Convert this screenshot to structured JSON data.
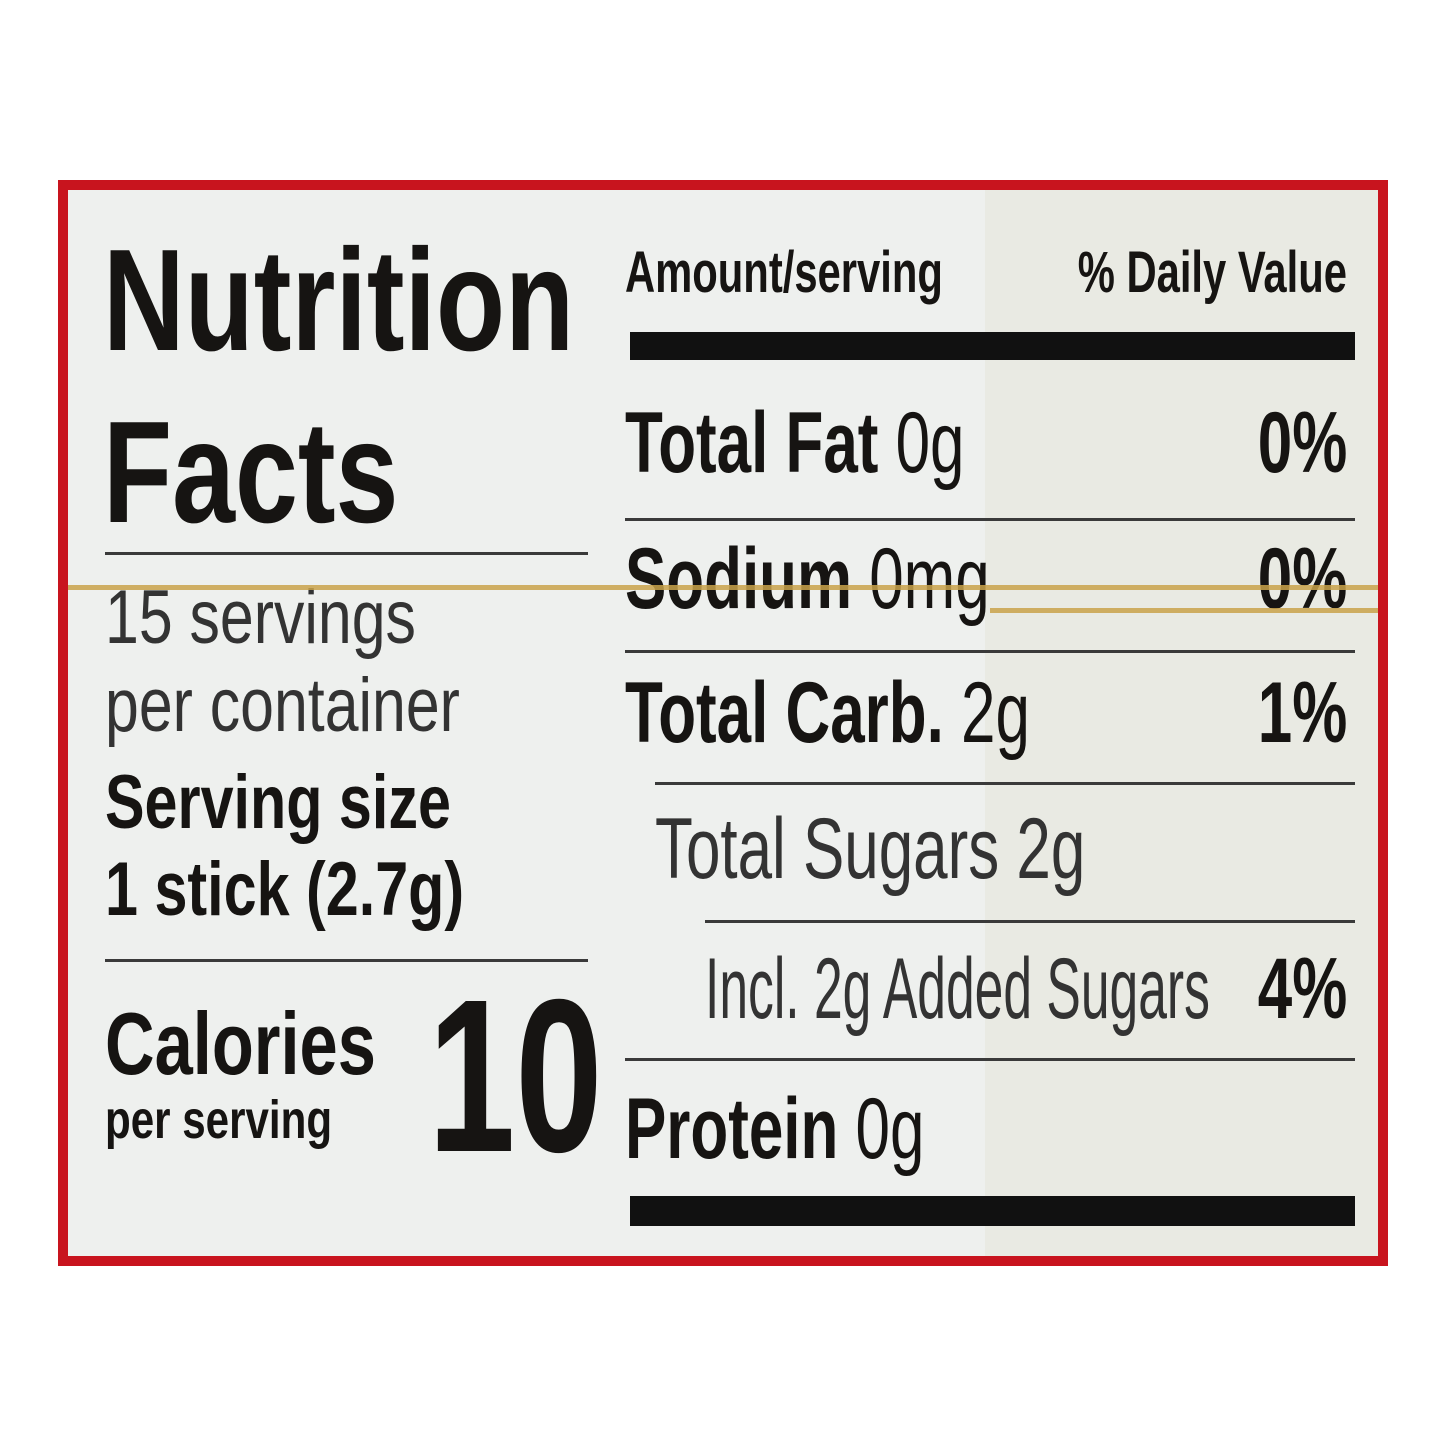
{
  "title": [
    "Nutrition",
    "Facts"
  ],
  "servings": [
    "15 servings",
    "per container"
  ],
  "serving_size": [
    "Serving size",
    "1 stick (2.7g)"
  ],
  "calories": {
    "label": "Calories",
    "sub": "per serving",
    "value": "10"
  },
  "header": {
    "amount": "Amount/serving",
    "dv": "% Daily Value"
  },
  "rows": [
    {
      "name": "Total Fat",
      "amount": "0g",
      "dv": "0%"
    },
    {
      "name": "Sodium",
      "amount": "0mg",
      "dv": "0%"
    },
    {
      "name": "Total Carb.",
      "amount": "2g",
      "dv": "1%"
    },
    {
      "name": "Total Sugars 2g"
    },
    {
      "name": "Incl. 2g Added Sugars",
      "dv": "4%"
    },
    {
      "name": "Protein",
      "amount": "0g"
    }
  ],
  "colors": {
    "border": "#c8141e",
    "background": "#eef0ee",
    "text": "#161412"
  }
}
